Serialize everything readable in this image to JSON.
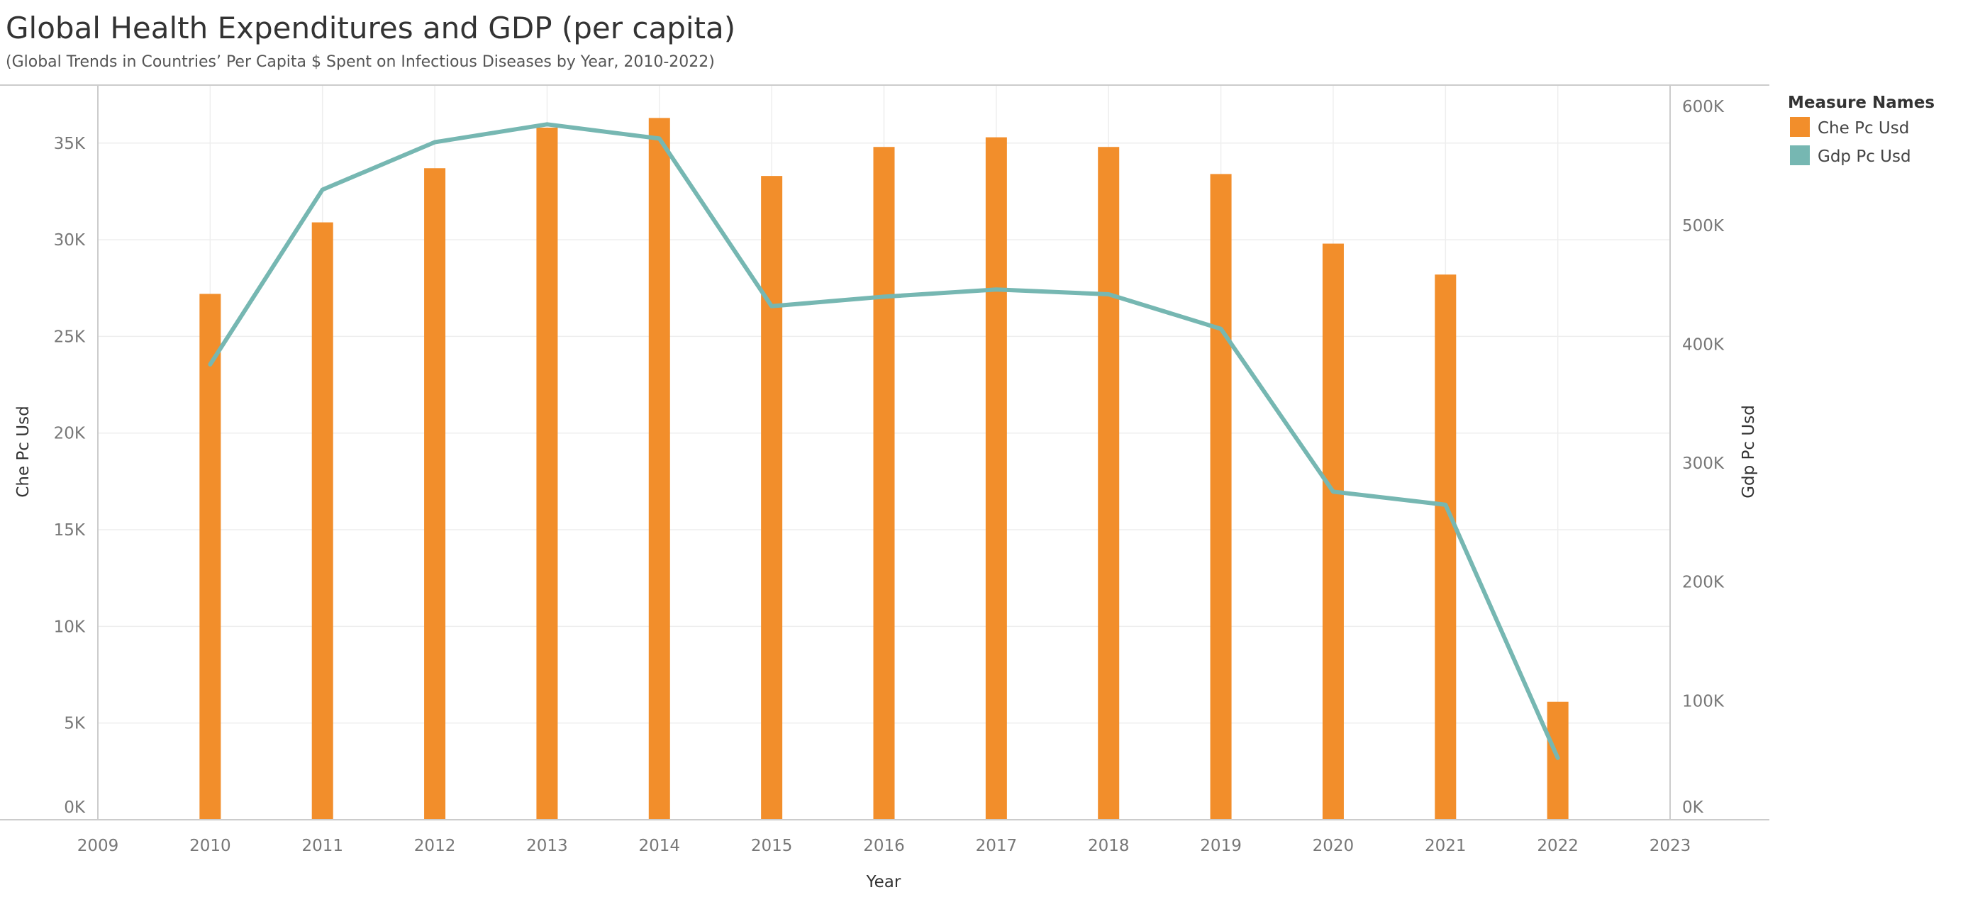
{
  "header": {
    "title": "Global Health Expenditures and GDP (per capita)",
    "subtitle": "(Global Trends in Countries’ Per Capita $ Spent on Infectious Diseases by Year, 2010-2022)"
  },
  "legend": {
    "title": "Measure Names",
    "placement": "top-right",
    "items": [
      {
        "label": "Che Pc Usd",
        "color": "#f28e2b"
      },
      {
        "label": "Gdp Pc Usd",
        "color": "#76b7b2"
      }
    ]
  },
  "colors": {
    "bar": "#f28e2b",
    "line": "#76b7b2",
    "grid": "#eeeeee",
    "axis": "#cccccc"
  },
  "chart_data": {
    "type": "bar",
    "title": "Global Health Expenditures and GDP (per capita)",
    "subtitle": "(Global Trends in Countries’ Per Capita $ Spent on Infectious Diseases by Year, 2010-2022)",
    "xlabel": "Year",
    "ylabel": "Che Pc Usd",
    "y2label": "Gdp Pc Usd",
    "grid": true,
    "x_ticks": [
      2009,
      2010,
      2011,
      2012,
      2013,
      2014,
      2015,
      2016,
      2017,
      2018,
      2019,
      2020,
      2021,
      2022,
      2023
    ],
    "xlim": [
      2009,
      2023
    ],
    "ylim": [
      0,
      38000
    ],
    "y_ticks": [
      0,
      5000,
      10000,
      15000,
      20000,
      25000,
      30000,
      35000
    ],
    "y_tick_labels": [
      "0K",
      "5K",
      "10K",
      "15K",
      "20K",
      "25K",
      "30K",
      "35K"
    ],
    "y2lim": [
      0,
      618000
    ],
    "y2_ticks": [
      0,
      100000,
      200000,
      300000,
      400000,
      500000,
      600000
    ],
    "y2_tick_labels": [
      "0K",
      "100K",
      "200K",
      "300K",
      "400K",
      "500K",
      "600K"
    ],
    "x": [
      2010,
      2011,
      2012,
      2013,
      2014,
      2015,
      2016,
      2017,
      2018,
      2019,
      2020,
      2021,
      2022
    ],
    "series": [
      {
        "name": "Che Pc Usd",
        "type": "bar",
        "axis": "left",
        "values": [
          27200,
          30900,
          33700,
          35800,
          36300,
          33300,
          34800,
          35300,
          34800,
          33400,
          29800,
          28200,
          6100
        ]
      },
      {
        "name": "Gdp Pc Usd",
        "type": "line",
        "axis": "right",
        "values": [
          383000,
          530000,
          570000,
          585000,
          573000,
          432000,
          440000,
          446000,
          442000,
          413000,
          276000,
          265000,
          52000
        ]
      }
    ]
  }
}
